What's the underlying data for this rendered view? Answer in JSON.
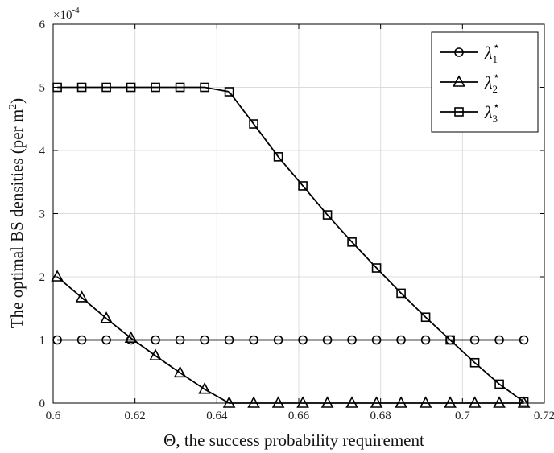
{
  "chart_data": {
    "type": "line",
    "xlabel": "Θ, the success probability requirement",
    "ylabel": "The optimal BS densities (per m",
    "ylabel_sup": "2",
    "ylabel_end": ")",
    "y_exponent_label": "×10",
    "y_exponent_power": "-4",
    "xlim": [
      0.6,
      0.72
    ],
    "ylim": [
      0,
      6
    ],
    "xticks": [
      "0.6",
      "0.62",
      "0.64",
      "0.66",
      "0.68",
      "0.7",
      "0.72"
    ],
    "yticks": [
      "0",
      "1",
      "2",
      "3",
      "4",
      "5",
      "6"
    ],
    "grid": true,
    "legend_position": "top-right",
    "x": [
      0.601,
      0.607,
      0.613,
      0.619,
      0.625,
      0.631,
      0.637,
      0.643,
      0.649,
      0.655,
      0.661,
      0.667,
      0.673,
      0.679,
      0.685,
      0.691,
      0.697,
      0.703,
      0.709,
      0.715
    ],
    "series": [
      {
        "name": "λ1",
        "sup": "⋆",
        "marker": "circle",
        "values": [
          1,
          1,
          1,
          1,
          1,
          1,
          1,
          1,
          1,
          1,
          1,
          1,
          1,
          1,
          1,
          1,
          1,
          1,
          1,
          1
        ]
      },
      {
        "name": "λ2",
        "sup": "⋆",
        "marker": "triangle",
        "values": [
          2.0,
          1.67,
          1.34,
          1.03,
          0.75,
          0.48,
          0.22,
          0,
          0,
          0,
          0,
          0,
          0,
          0,
          0,
          0,
          0,
          0,
          0,
          0
        ]
      },
      {
        "name": "λ3",
        "sup": "⋆",
        "marker": "square",
        "values": [
          5.0,
          5.0,
          5.0,
          5.0,
          5.0,
          5.0,
          5.0,
          4.93,
          4.42,
          3.9,
          3.44,
          2.98,
          2.55,
          2.14,
          1.74,
          1.36,
          1.0,
          0.64,
          0.3,
          0.02
        ]
      }
    ]
  }
}
